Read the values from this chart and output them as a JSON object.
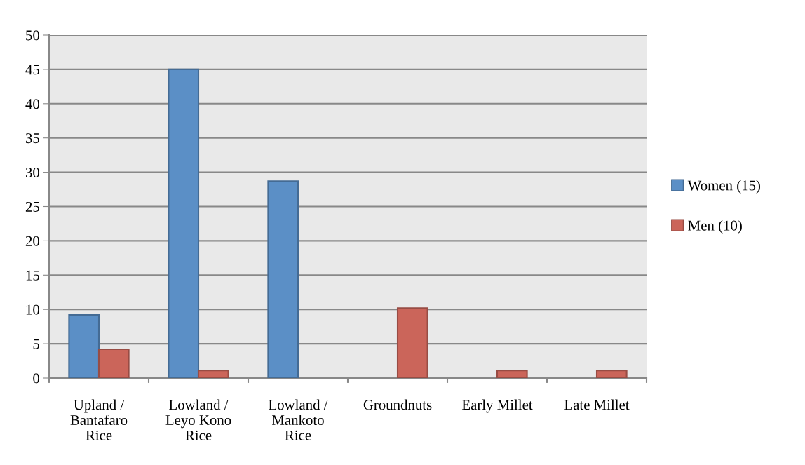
{
  "chart_data": {
    "type": "bar",
    "categories": [
      "Upland /\nBantafaro\nRice",
      "Lowland /\nLeyo Kono\nRice",
      "Lowland /\nMankoto\nRice",
      "Groundnuts",
      "Early Millet",
      "Late Millet"
    ],
    "series": [
      {
        "name": "Women (15)",
        "color": "#5b8fc6",
        "values": [
          9.2,
          45,
          28.7,
          0,
          0,
          0
        ]
      },
      {
        "name": "Men (10)",
        "color": "#cb655a",
        "values": [
          4.2,
          1.1,
          0,
          10.2,
          1.1,
          1.1
        ]
      }
    ],
    "ylim": [
      0,
      50
    ],
    "yticks": [
      0,
      5,
      10,
      15,
      20,
      25,
      30,
      35,
      40,
      45,
      50
    ],
    "grid": "y",
    "legend": "right"
  }
}
